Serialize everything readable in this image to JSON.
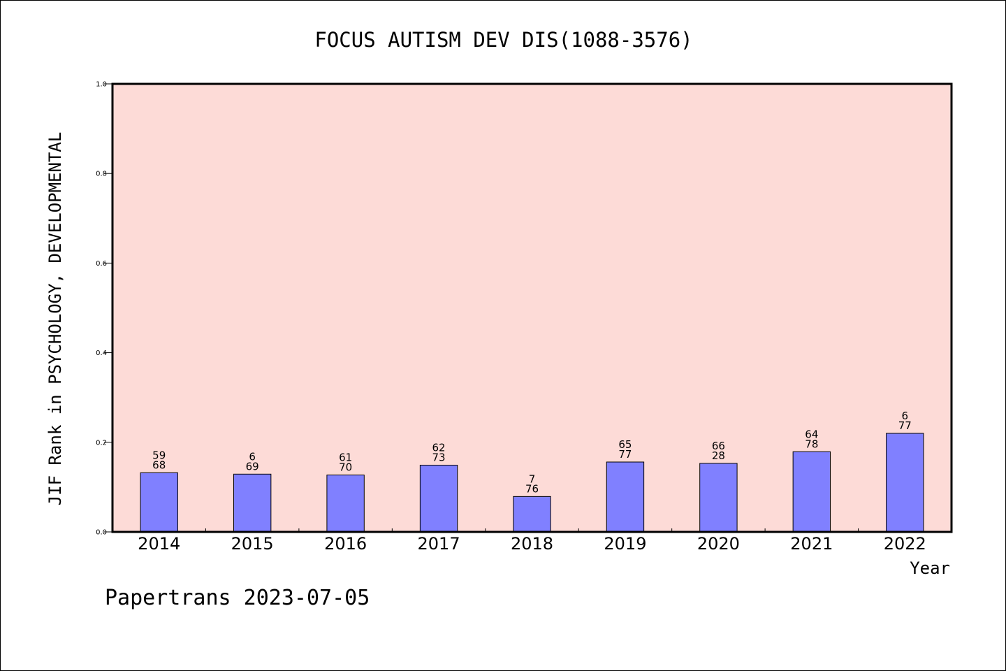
{
  "chart_data": {
    "type": "bar",
    "title": "FOCUS AUTISM DEV DIS(1088-3576)",
    "xlabel": "Year",
    "ylabel": "JIF Rank in PSYCHOLOGY, DEVELOPMENTAL",
    "ylim": [
      0,
      1.0
    ],
    "yticks": [
      "0.0",
      "0.2",
      "0.4",
      "0.6",
      "0.8",
      "1.0"
    ],
    "grid": false,
    "colors": {
      "plot_background": "#fddbd7",
      "bar_fill": "#8080ff",
      "bar_edge": "#000000",
      "axis": "#000000"
    },
    "categories": [
      "2014",
      "2015",
      "2016",
      "2017",
      "2018",
      "2019",
      "2020",
      "2021",
      "2022"
    ],
    "values": [
      0.132,
      0.129,
      0.127,
      0.149,
      0.079,
      0.156,
      0.153,
      0.179,
      0.22
    ],
    "labels": [
      [
        "59",
        "68"
      ],
      [
        "6",
        "69"
      ],
      [
        "61",
        "70"
      ],
      [
        "62",
        "73"
      ],
      [
        "7",
        "76"
      ],
      [
        "65",
        "77"
      ],
      [
        "66",
        "28"
      ],
      [
        "64",
        "78"
      ],
      [
        "6",
        "77"
      ]
    ]
  },
  "footer": {
    "text": "Papertrans 2023-07-05"
  }
}
